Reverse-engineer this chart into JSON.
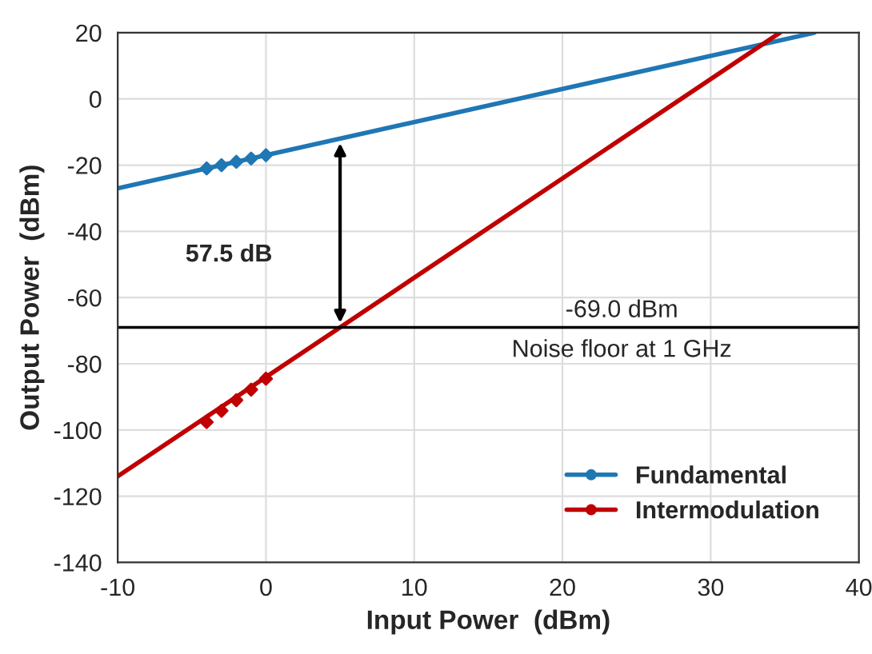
{
  "chart_data": {
    "type": "line",
    "xlabel": "Input Power  (dBm)",
    "ylabel": "Output Power  (dBm)",
    "xlim": [
      -10,
      40
    ],
    "ylim": [
      -140,
      20
    ],
    "xticks": [
      -10,
      0,
      10,
      20,
      30,
      40
    ],
    "yticks": [
      -140,
      -120,
      -100,
      -80,
      -60,
      -40,
      -20,
      0,
      20
    ],
    "grid": true,
    "legend": "bottom right",
    "series": [
      {
        "name": "Fundamental",
        "color": "#1f77b4",
        "x": [
          -10,
          37
        ],
        "values": [
          -27,
          20
        ]
      },
      {
        "name": "Intermodulation",
        "color": "#c00000",
        "x": [
          -10,
          34.67
        ],
        "values": [
          -114,
          20
        ]
      },
      {
        "type": "scatter",
        "marker": "diamond",
        "color": "#1f77b4",
        "x": [
          -4,
          -3,
          -2,
          -1,
          0
        ],
        "values": [
          -21,
          -20,
          -19,
          -18,
          -17
        ]
      },
      {
        "type": "scatter",
        "marker": "diamond",
        "color": "#c00000",
        "x": [
          -4,
          -3,
          -2,
          -1,
          0
        ],
        "values": [
          -97.6,
          -94.2,
          -91,
          -87.8,
          -84.5
        ]
      }
    ],
    "ref_lines": [
      {
        "axis": "y",
        "value": -69,
        "color": "#000000"
      }
    ],
    "annotations": [
      "57.5 dB",
      "-69.0 dBm",
      "Noise floor at 1 GHz"
    ]
  }
}
